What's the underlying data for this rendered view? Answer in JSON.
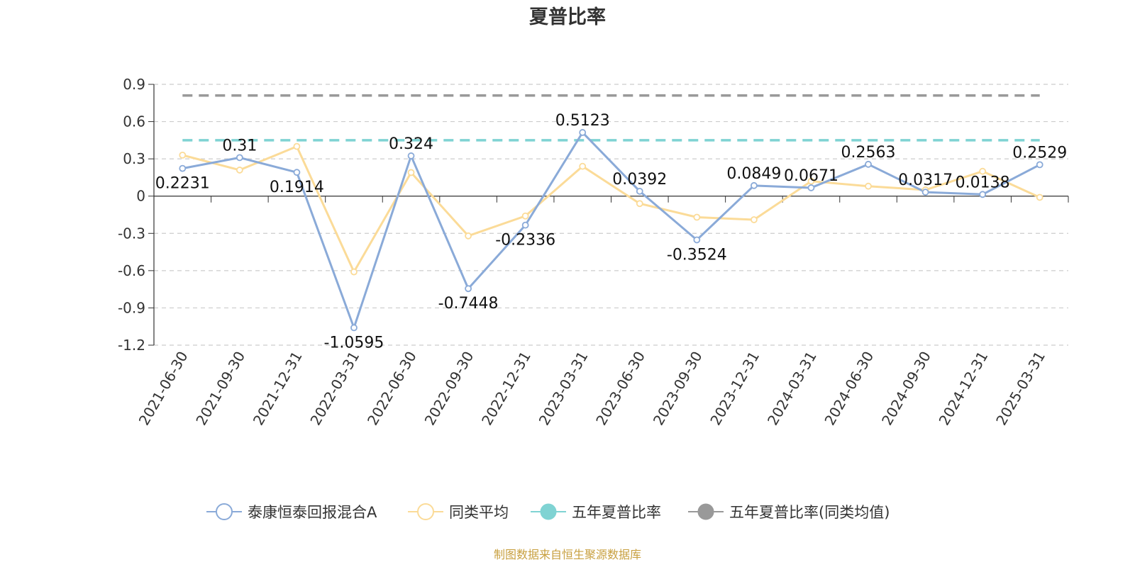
{
  "chart_data": {
    "type": "line",
    "title": "夏普比率",
    "categories": [
      "2021-06-30",
      "2021-09-30",
      "2021-12-31",
      "2022-03-31",
      "2022-06-30",
      "2022-09-30",
      "2022-12-31",
      "2023-03-31",
      "2023-06-30",
      "2023-09-30",
      "2023-12-31",
      "2024-03-31",
      "2024-06-30",
      "2024-09-30",
      "2024-12-31",
      "2025-03-31"
    ],
    "y_ticks": [
      "0.9",
      "0.6",
      "0.3",
      "0",
      "-0.3",
      "-0.6",
      "-0.9",
      "-1.2"
    ],
    "ylim": [
      -1.2,
      0.9
    ],
    "grid": true,
    "legend_position": "bottom",
    "series": [
      {
        "name": "泰康恒泰回报混合A",
        "color": "#8aaad8",
        "values": [
          0.2231,
          0.31,
          0.1914,
          -1.0595,
          0.324,
          -0.7448,
          -0.2336,
          0.5123,
          0.0392,
          -0.3524,
          0.0849,
          0.0671,
          0.2563,
          0.0317,
          0.0138,
          0.2529
        ],
        "labels": [
          "0.2231",
          "0.31",
          "0.1914",
          "-1.0595",
          "0.324",
          "-0.7448",
          "-0.2336",
          "0.5123",
          "0.0392",
          "-0.3524",
          "0.0849",
          "0.0671",
          "0.2563",
          "0.0317",
          "0.0138",
          "0.2529"
        ]
      },
      {
        "name": "同类平均",
        "color": "#fbdb98",
        "values": [
          0.33,
          0.21,
          0.4,
          -0.61,
          0.19,
          -0.32,
          -0.16,
          0.24,
          -0.06,
          -0.17,
          -0.19,
          0.12,
          0.08,
          0.05,
          0.2,
          -0.01
        ]
      },
      {
        "name": "五年夏普比率",
        "color": "#7fd3d3",
        "dashed": true,
        "constant": 0.45
      },
      {
        "name": "五年夏普比率(同类均值)",
        "color": "#999999",
        "dashed": true,
        "constant": 0.81
      }
    ],
    "source": "制图数据来自恒生聚源数据库"
  }
}
